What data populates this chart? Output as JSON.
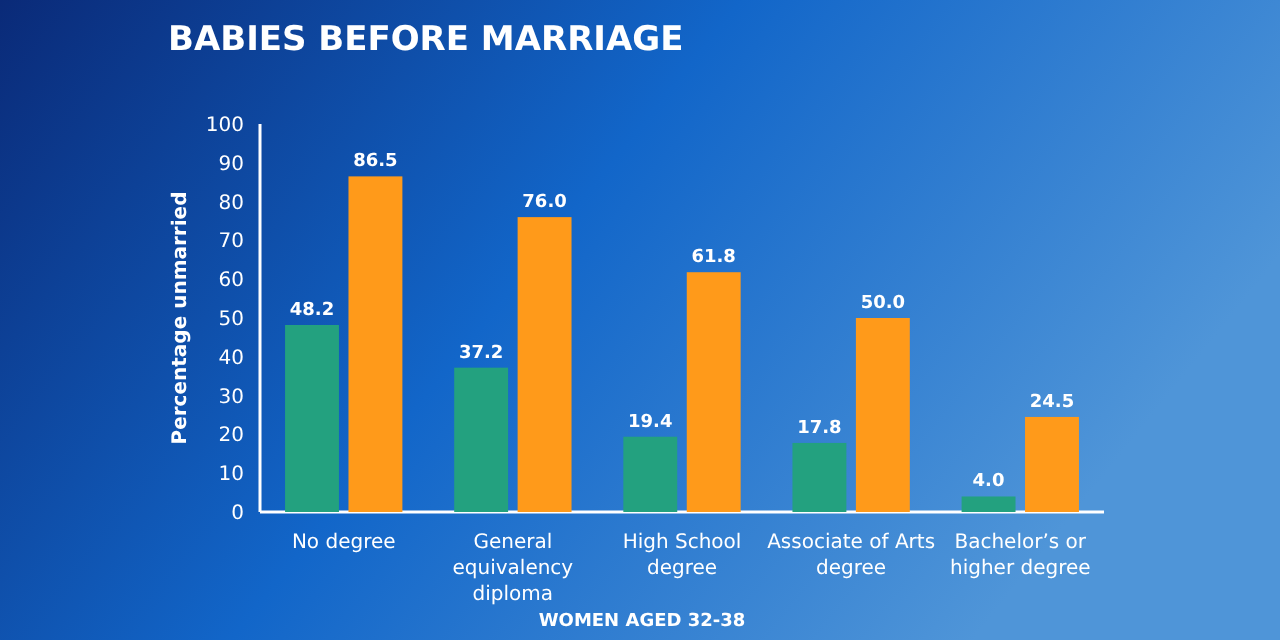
{
  "chart_data": {
    "type": "bar",
    "title": "BABIES BEFORE MARRIAGE",
    "xlabel": "WOMEN AGED 32-38",
    "ylabel": "Percentage unmarried",
    "categories": [
      "No degree",
      "General equivalency diploma",
      "High School degree",
      "Associate of Arts degree",
      "Bachelor’s or higher degree"
    ],
    "series": [
      {
        "color": "#23a17f",
        "values": [
          48.2,
          37.2,
          19.4,
          17.8,
          4
        ],
        "value_labels": [
          "48.2",
          "37.2",
          "19.4",
          "17.8",
          "4.0"
        ]
      },
      {
        "color": "#ff9a1a",
        "values": [
          86.5,
          76,
          61.8,
          50,
          24.5
        ],
        "value_labels": [
          "86.5",
          "76.0",
          "61.8",
          "50.0",
          "24.5"
        ]
      }
    ],
    "ylim": [
      0,
      100
    ],
    "yticks": [
      0,
      10,
      20,
      30,
      40,
      50,
      60,
      70,
      80,
      90,
      100
    ]
  }
}
